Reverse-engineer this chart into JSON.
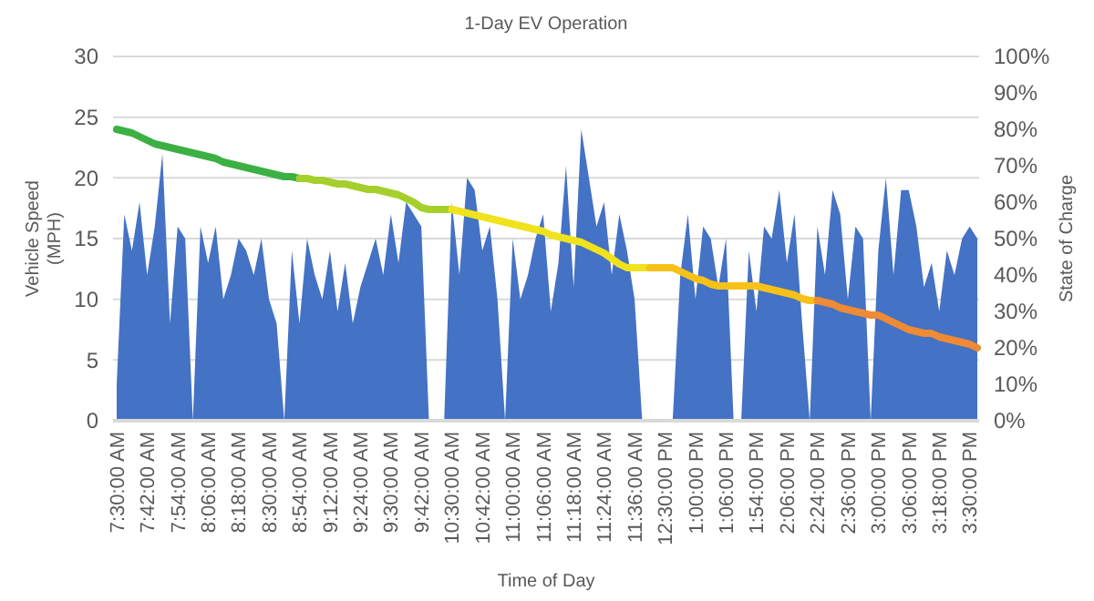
{
  "chart_data": {
    "type": "area",
    "title": "1-Day EV Operation",
    "xlabel": "Time of Day",
    "ylabel": "Vehicle Speed (MPH)",
    "y2label": "State of Charge",
    "categories": [
      "7:30:00 AM",
      null,
      null,
      null,
      "7:42:00 AM",
      null,
      null,
      null,
      "7:54:00 AM",
      null,
      null,
      null,
      "8:06:00 AM",
      null,
      null,
      null,
      "8:18:00 AM",
      null,
      null,
      null,
      "8:30:00 AM",
      null,
      null,
      null,
      "8:54:00 AM",
      null,
      null,
      null,
      "9:12:00 AM",
      null,
      null,
      null,
      "9:24:00 AM",
      null,
      null,
      null,
      "9:30:00 AM",
      null,
      null,
      null,
      "9:42:00 AM",
      null,
      null,
      null,
      "10:30:00 AM",
      null,
      null,
      null,
      "10:42:00 AM",
      null,
      null,
      null,
      "11:00:00 AM",
      null,
      null,
      null,
      "11:06:00 AM",
      null,
      null,
      null,
      "11:18:00 AM",
      null,
      null,
      null,
      "11:24:00 AM",
      null,
      null,
      null,
      "11:36:00 AM",
      null,
      null,
      null,
      "12:30:00 PM",
      null,
      null,
      null,
      "1:00:00 PM",
      null,
      null,
      null,
      "1:06:00 PM",
      null,
      null,
      null,
      "1:54:00 PM",
      null,
      null,
      null,
      "2:06:00 PM",
      null,
      null,
      null,
      "2:24:00 PM",
      null,
      null,
      null,
      "2:36:00 PM",
      null,
      null,
      null,
      "3:00:00 PM",
      null,
      null,
      null,
      "3:06:00 PM",
      null,
      null,
      null,
      "3:18:00 PM",
      null,
      null,
      null,
      "3:30:00 PM",
      null
    ],
    "series": [
      {
        "axis": "y",
        "color": "#4472c4",
        "values": [
          3,
          17,
          14,
          18,
          12,
          16,
          22,
          8,
          16,
          15,
          0,
          16,
          13,
          16,
          10,
          12,
          15,
          14,
          12,
          15,
          10,
          8,
          0,
          14,
          8,
          15,
          12,
          10,
          14,
          9,
          13,
          8,
          11,
          13,
          15,
          12,
          17,
          13,
          18,
          17,
          16,
          0,
          0,
          0,
          18,
          12,
          20,
          19,
          14,
          16,
          10,
          0,
          15,
          10,
          12,
          15,
          17,
          9,
          13,
          21,
          11,
          24,
          20,
          16,
          18,
          12,
          17,
          14,
          10,
          0,
          0,
          0,
          0,
          0,
          12,
          17,
          10,
          16,
          15,
          11,
          15,
          0,
          0,
          14,
          9,
          16,
          15,
          19,
          13,
          17,
          8,
          0,
          16,
          12,
          19,
          17,
          10,
          16,
          15,
          0,
          14,
          20,
          12,
          19,
          19,
          16,
          11,
          13,
          9,
          14,
          12,
          15,
          16,
          15
        ]
      },
      {
        "type": "line",
        "axis": "y2",
        "color": "#3cb043",
        "values": [
          80,
          79.5,
          79,
          78,
          77,
          76,
          75.5,
          75,
          74.5,
          74,
          73.5,
          73,
          72.5,
          72,
          71,
          70.5,
          70,
          69.5,
          69,
          68.5,
          68,
          67.5,
          67,
          67,
          66.5,
          null,
          null,
          null,
          null,
          null,
          null,
          null,
          null,
          null,
          null,
          null,
          null,
          null,
          null,
          null,
          null,
          null,
          null,
          null,
          null,
          null,
          null,
          null,
          null,
          null,
          null,
          null,
          null,
          null,
          null,
          null,
          null,
          null,
          null,
          null,
          null,
          null,
          null,
          null,
          null,
          null,
          null,
          null,
          null,
          null,
          null,
          null,
          null,
          null,
          null,
          null,
          null,
          null,
          null,
          null,
          null,
          null,
          null,
          null,
          null,
          null,
          null,
          null,
          null,
          null,
          null,
          null,
          null,
          null,
          null,
          null,
          null,
          null,
          null,
          null,
          null,
          null,
          null,
          null,
          null,
          null,
          null,
          null,
          null,
          null,
          null,
          null,
          null,
          null
        ]
      },
      {
        "type": "line",
        "axis": "y2",
        "color": "#a5cf2a",
        "values": [
          null,
          null,
          null,
          null,
          null,
          null,
          null,
          null,
          null,
          null,
          null,
          null,
          null,
          null,
          null,
          null,
          null,
          null,
          null,
          null,
          null,
          null,
          null,
          null,
          66.5,
          66.5,
          66,
          66,
          65.5,
          65,
          65,
          64.5,
          64,
          63.5,
          63.5,
          63,
          62.5,
          62,
          61,
          60,
          58.5,
          58,
          58,
          58,
          58,
          null,
          null,
          null,
          null,
          null,
          null,
          null,
          null,
          null,
          null,
          null,
          null,
          null,
          null,
          null,
          null,
          null,
          null,
          null,
          null,
          null,
          null,
          null,
          null,
          null,
          null,
          null,
          null,
          null,
          null,
          null,
          null,
          null,
          null,
          null,
          null,
          null,
          null,
          null,
          null,
          null,
          null,
          null,
          null,
          null,
          null,
          null,
          null,
          null,
          null,
          null,
          null,
          null,
          null,
          null,
          null,
          null,
          null,
          null,
          null,
          null,
          null,
          null,
          null,
          null,
          null,
          null,
          null,
          null
        ]
      },
      {
        "type": "line",
        "axis": "y2",
        "color": "#f0e21c",
        "values": [
          null,
          null,
          null,
          null,
          null,
          null,
          null,
          null,
          null,
          null,
          null,
          null,
          null,
          null,
          null,
          null,
          null,
          null,
          null,
          null,
          null,
          null,
          null,
          null,
          null,
          null,
          null,
          null,
          null,
          null,
          null,
          null,
          null,
          null,
          null,
          null,
          null,
          null,
          null,
          null,
          null,
          null,
          null,
          null,
          58,
          57.5,
          57,
          56.5,
          56,
          55.5,
          55,
          54.5,
          54,
          53.5,
          53,
          52.5,
          52,
          51,
          50.5,
          50,
          49.5,
          49,
          48,
          47,
          46,
          44.5,
          43,
          42,
          42,
          42,
          42,
          null,
          null,
          null,
          null,
          null,
          null,
          null,
          null,
          null,
          null,
          null,
          null,
          null,
          null,
          null,
          null,
          null,
          null,
          null,
          null,
          null,
          null,
          null,
          null,
          null,
          null,
          null,
          null,
          null,
          null,
          null,
          null,
          null,
          null,
          null,
          null,
          null,
          null,
          null,
          null,
          null,
          null,
          null
        ]
      },
      {
        "type": "line",
        "axis": "y2",
        "color": "#f7c117",
        "values": [
          null,
          null,
          null,
          null,
          null,
          null,
          null,
          null,
          null,
          null,
          null,
          null,
          null,
          null,
          null,
          null,
          null,
          null,
          null,
          null,
          null,
          null,
          null,
          null,
          null,
          null,
          null,
          null,
          null,
          null,
          null,
          null,
          null,
          null,
          null,
          null,
          null,
          null,
          null,
          null,
          null,
          null,
          null,
          null,
          null,
          null,
          null,
          null,
          null,
          null,
          null,
          null,
          null,
          null,
          null,
          null,
          null,
          null,
          null,
          null,
          null,
          null,
          null,
          null,
          null,
          null,
          null,
          null,
          null,
          null,
          42,
          42,
          42,
          42,
          41,
          40,
          39,
          38.5,
          37.5,
          37,
          37,
          37,
          37,
          37,
          37,
          36.5,
          36,
          35.5,
          35,
          34.5,
          33.5,
          33,
          33,
          null,
          null,
          null,
          null,
          null,
          null,
          null,
          null,
          null,
          null,
          null,
          null,
          null,
          null,
          null,
          null,
          null,
          null,
          null,
          null,
          null
        ]
      },
      {
        "type": "line",
        "axis": "y2",
        "color": "#ef8a35",
        "values": [
          null,
          null,
          null,
          null,
          null,
          null,
          null,
          null,
          null,
          null,
          null,
          null,
          null,
          null,
          null,
          null,
          null,
          null,
          null,
          null,
          null,
          null,
          null,
          null,
          null,
          null,
          null,
          null,
          null,
          null,
          null,
          null,
          null,
          null,
          null,
          null,
          null,
          null,
          null,
          null,
          null,
          null,
          null,
          null,
          null,
          null,
          null,
          null,
          null,
          null,
          null,
          null,
          null,
          null,
          null,
          null,
          null,
          null,
          null,
          null,
          null,
          null,
          null,
          null,
          null,
          null,
          null,
          null,
          null,
          null,
          null,
          null,
          null,
          null,
          null,
          null,
          null,
          null,
          null,
          null,
          null,
          null,
          null,
          null,
          null,
          null,
          null,
          null,
          null,
          null,
          null,
          null,
          33,
          32.5,
          32,
          31,
          30.5,
          30,
          29.5,
          29,
          29,
          28,
          27,
          26,
          25,
          24.5,
          24,
          24,
          23,
          22.5,
          22,
          21.5,
          21,
          20
        ]
      }
    ],
    "ylim": [
      0,
      30
    ],
    "yticks": [
      0,
      5,
      10,
      15,
      20,
      25,
      30
    ],
    "y2lim": [
      0,
      100
    ],
    "y2ticks": [
      {
        "value": 0,
        "label": "0%"
      },
      {
        "value": 10,
        "label": "10%"
      },
      {
        "value": 20,
        "label": "20%"
      },
      {
        "value": 30,
        "label": "30%"
      },
      {
        "value": 40,
        "label": "40%"
      },
      {
        "value": 50,
        "label": "50%"
      },
      {
        "value": 60,
        "label": "60%"
      },
      {
        "value": 70,
        "label": "70%"
      },
      {
        "value": 80,
        "label": "80%"
      },
      {
        "value": 90,
        "label": "90%"
      },
      {
        "value": 100,
        "label": "100%"
      }
    ],
    "grid": "y",
    "marker": "none",
    "line_style": "solid"
  }
}
